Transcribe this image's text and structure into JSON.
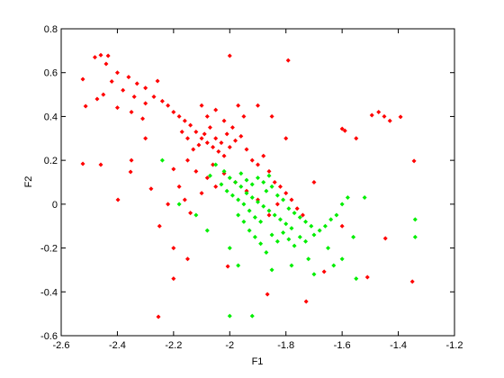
{
  "chart_data": {
    "type": "scatter",
    "xlabel": "F1",
    "ylabel": "F2",
    "xlim": [
      -2.6,
      -1.2
    ],
    "xticks": [
      -2.6,
      -2.4,
      -2.2,
      -2,
      -1.8,
      -1.6,
      -1.4,
      -1.2
    ],
    "ylim": [
      -0.6,
      0.8
    ],
    "yticks": [
      -0.6,
      -0.4,
      -0.2,
      0,
      0.2,
      0.4,
      0.6,
      0.8
    ],
    "grid": false,
    "series": [
      {
        "color": "#ff0000",
        "x": [
          -2.48,
          -2.44,
          -2.4,
          -2.36,
          -2.33,
          -2.3,
          -2.27,
          -2.24,
          -2.22,
          -2.2,
          -2.18,
          -2.16,
          -2.42,
          -2.38,
          -2.34,
          -2.3,
          -2.45,
          -2.4,
          -2.35,
          -2.31,
          -2.14,
          -2.12,
          -2.1,
          -2.08,
          -2.06,
          -2.04,
          -2.11,
          -2.09,
          -2.07,
          -2.05,
          -2.03,
          -2.01,
          -1.99,
          -2.13,
          -2.15,
          -2.17,
          -2.02,
          -2.0,
          -1.98,
          -1.96,
          -2.08,
          -2.05,
          -2.02,
          -1.95,
          -1.97,
          -2.1,
          -2.15,
          -2.12,
          -2.08,
          -2.05,
          -2.2,
          -2.18,
          -2.16,
          -2.14,
          -2.1,
          -2.06,
          -1.94,
          -1.92,
          -1.9,
          -1.88,
          -1.86,
          -1.84,
          -1.82,
          -1.8,
          -1.78,
          -1.76,
          -1.74,
          -1.83,
          -1.86,
          -1.9,
          -1.94,
          -1.98,
          -2.02,
          -2.523,
          -2.513,
          -2.459,
          -2.433,
          -2.472,
          -2.523,
          -2.459,
          -2.398,
          -2.353,
          -2.257,
          -2.254,
          -2.2,
          -2.0,
          -1.792,
          -1.6,
          -1.59,
          -1.494,
          -1.47,
          -1.45,
          -1.43,
          -1.392,
          -1.344,
          -1.35,
          -1.446,
          -1.51,
          -1.728,
          -1.866,
          -2.007,
          -1.664,
          -2.2,
          -2.15,
          -2.25,
          -1.55,
          -1.6,
          -1.7,
          -1.8,
          -1.85,
          -1.9,
          -2.3,
          -2.35,
          -2.28,
          -2.22
        ],
        "y": [
          0.67,
          0.64,
          0.6,
          0.58,
          0.55,
          0.53,
          0.49,
          0.47,
          0.45,
          0.42,
          0.4,
          0.38,
          0.56,
          0.52,
          0.49,
          0.46,
          0.5,
          0.44,
          0.42,
          0.39,
          0.36,
          0.33,
          0.3,
          0.28,
          0.26,
          0.24,
          0.27,
          0.32,
          0.35,
          0.3,
          0.28,
          0.32,
          0.35,
          0.25,
          0.3,
          0.33,
          0.22,
          0.26,
          0.29,
          0.31,
          0.4,
          0.43,
          0.38,
          0.4,
          0.45,
          0.45,
          0.2,
          0.15,
          0.12,
          0.08,
          0.16,
          0.08,
          0.02,
          -0.04,
          0.05,
          0.18,
          0.25,
          0.2,
          0.18,
          0.22,
          0.15,
          0.1,
          0.08,
          0.05,
          0.02,
          -0.02,
          -0.05,
          0.0,
          -0.05,
          0.02,
          0.06,
          0.1,
          0.14,
          0.57,
          0.447,
          0.68,
          0.677,
          0.48,
          0.184,
          0.18,
          0.02,
          0.147,
          0.562,
          -0.514,
          -0.34,
          0.677,
          0.656,
          0.344,
          0.335,
          0.406,
          0.42,
          0.4,
          0.38,
          0.398,
          0.197,
          -0.353,
          -0.156,
          -0.333,
          -0.444,
          -0.411,
          -0.284,
          -0.308,
          -0.2,
          -0.25,
          -0.1,
          0.3,
          -0.1,
          0.1,
          0.3,
          0.4,
          0.45,
          0.3,
          0.2,
          0.07,
          0.0
        ]
      },
      {
        "color": "#00ee00",
        "x": [
          -2.05,
          -2.02,
          -2.0,
          -1.98,
          -1.96,
          -1.94,
          -1.92,
          -1.9,
          -1.88,
          -1.86,
          -1.84,
          -1.82,
          -1.8,
          -1.78,
          -1.95,
          -1.93,
          -1.91,
          -1.89,
          -1.87,
          -1.85,
          -1.83,
          -1.81,
          -1.79,
          -1.77,
          -1.75,
          -1.73,
          -1.71,
          -1.99,
          -1.97,
          -2.01,
          -2.03,
          -2.07,
          -1.96,
          -1.94,
          -1.92,
          -1.9,
          -1.88,
          -1.86,
          -1.97,
          -1.95,
          -1.93,
          -1.91,
          -1.89,
          -1.87,
          -1.85,
          -1.83,
          -1.81,
          -1.79,
          -1.77,
          -1.75,
          -1.73,
          -1.7,
          -1.68,
          -1.66,
          -1.64,
          -1.62,
          -1.6,
          -1.58,
          -2.24,
          -2.18,
          -2.12,
          -2.08,
          -2.0,
          -1.97,
          -2.0,
          -1.92,
          -1.85,
          -1.78,
          -1.72,
          -1.65,
          -1.6,
          -1.55,
          -1.34,
          -1.34,
          -1.52,
          -1.56,
          -1.63,
          -1.7
        ],
        "y": [
          0.18,
          0.15,
          0.12,
          0.1,
          0.08,
          0.05,
          0.03,
          0.01,
          -0.01,
          -0.03,
          -0.05,
          -0.07,
          -0.09,
          -0.11,
          0.0,
          -0.03,
          -0.06,
          -0.08,
          0.06,
          0.08,
          0.04,
          0.02,
          -0.02,
          -0.04,
          -0.06,
          -0.08,
          -0.1,
          0.04,
          0.02,
          0.06,
          0.09,
          0.13,
          0.14,
          0.11,
          0.09,
          0.12,
          0.1,
          0.13,
          -0.05,
          -0.08,
          -0.12,
          -0.15,
          -0.18,
          -0.22,
          -0.14,
          -0.17,
          -0.13,
          -0.16,
          -0.19,
          -0.15,
          -0.17,
          -0.14,
          -0.12,
          -0.1,
          -0.07,
          -0.05,
          0.0,
          0.03,
          0.2,
          0.0,
          -0.05,
          -0.12,
          -0.2,
          -0.28,
          -0.51,
          -0.51,
          -0.3,
          -0.28,
          -0.25,
          -0.2,
          -0.25,
          -0.34,
          -0.07,
          -0.15,
          0.03,
          -0.15,
          -0.28,
          -0.32
        ]
      }
    ]
  }
}
